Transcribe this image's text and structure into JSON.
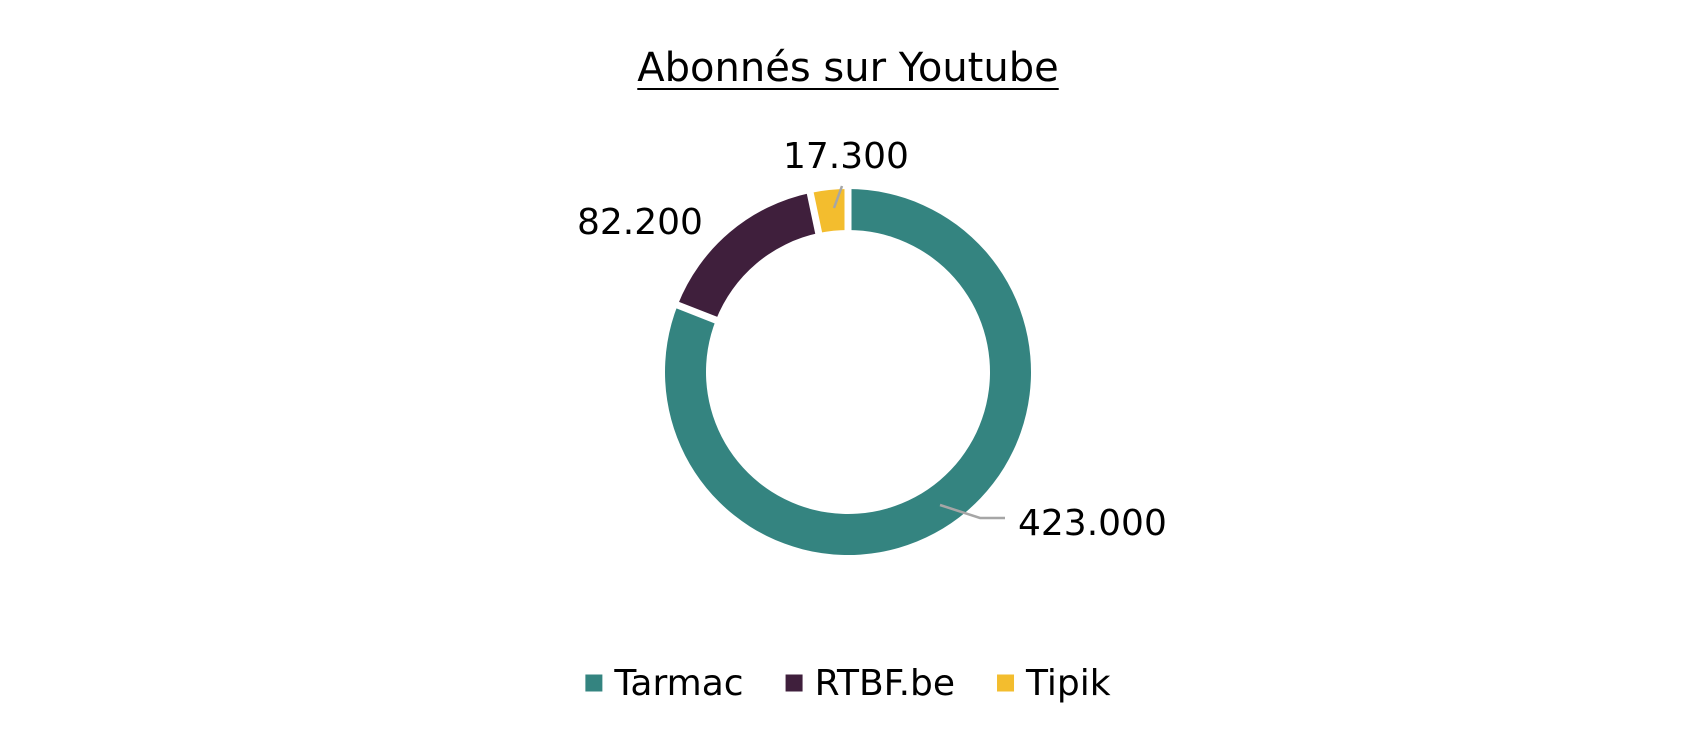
{
  "chart_data": {
    "type": "pie",
    "variant": "doughnut",
    "title": "Abonnés sur Youtube",
    "categories": [
      "Tarmac",
      "RTBF.be",
      "Tipik"
    ],
    "values": [
      423000,
      82200,
      17300
    ],
    "data_labels": [
      "423.000",
      "82.200",
      "17.300"
    ],
    "colors": [
      "#348480",
      "#3f1f3c",
      "#f3bd2e"
    ],
    "legend": {
      "position": "bottom",
      "entries": [
        "Tarmac",
        "RTBF.be",
        "Tipik"
      ]
    },
    "start_angle_deg": 0,
    "direction": "clockwise"
  }
}
